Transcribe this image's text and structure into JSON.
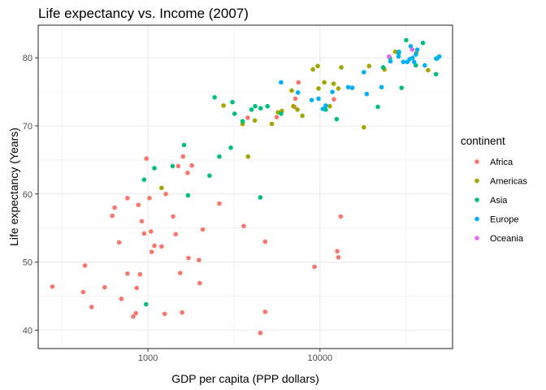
{
  "chart_data": {
    "type": "scatter",
    "title": "Life expectancy vs. Income (2007)",
    "xlabel": "GDP per capita (PPP dollars)",
    "ylabel": "Life expectancy (Years)",
    "x_scale": "log10",
    "xlim": [
      230,
      59000
    ],
    "ylim": [
      37.3,
      84.8
    ],
    "x_ticks": [
      1000,
      10000
    ],
    "x_tick_labels": [
      "1000",
      "10000"
    ],
    "y_ticks": [
      40,
      50,
      60,
      70,
      80
    ],
    "y_tick_labels": [
      "40",
      "50",
      "60",
      "70",
      "80"
    ],
    "grid": true,
    "legend_title": "continent",
    "legend_position": "right",
    "series": [
      {
        "name": "Africa",
        "color": "#F8766D",
        "points": [
          [
            278,
            46.4
          ],
          [
            420,
            45.6
          ],
          [
            430,
            49.5
          ],
          [
            470,
            43.4
          ],
          [
            560,
            46.3
          ],
          [
            620,
            56.8
          ],
          [
            640,
            58.0
          ],
          [
            680,
            52.9
          ],
          [
            700,
            44.6
          ],
          [
            760,
            48.3
          ],
          [
            760,
            59.4
          ],
          [
            820,
            42.0
          ],
          [
            850,
            42.5
          ],
          [
            860,
            46.2
          ],
          [
            880,
            58.4
          ],
          [
            900,
            48.2
          ],
          [
            920,
            56.0
          ],
          [
            950,
            54.2
          ],
          [
            980,
            65.2
          ],
          [
            1020,
            59.4
          ],
          [
            1040,
            54.5
          ],
          [
            1050,
            51.5
          ],
          [
            1090,
            52.4
          ],
          [
            1200,
            52.3
          ],
          [
            1250,
            42.4
          ],
          [
            1270,
            60.0
          ],
          [
            1400,
            56.7
          ],
          [
            1450,
            54.1
          ],
          [
            1500,
            64.1
          ],
          [
            1540,
            48.4
          ],
          [
            1580,
            42.6
          ],
          [
            1600,
            65.5
          ],
          [
            1700,
            63.1
          ],
          [
            1720,
            50.6
          ],
          [
            1800,
            64.2
          ],
          [
            1980,
            50.3
          ],
          [
            2000,
            46.9
          ],
          [
            2080,
            54.8
          ],
          [
            2600,
            58.6
          ],
          [
            3600,
            55.3
          ],
          [
            3800,
            71.2
          ],
          [
            4500,
            39.6
          ],
          [
            4800,
            42.7
          ],
          [
            4800,
            53.0
          ],
          [
            5600,
            71.3
          ],
          [
            7100,
            72.8
          ],
          [
            7200,
            74.0
          ],
          [
            7500,
            76.4
          ],
          [
            9300,
            49.3
          ],
          [
            12050,
            73.9
          ],
          [
            12600,
            51.6
          ],
          [
            12800,
            50.7
          ],
          [
            13200,
            56.7
          ]
        ]
      },
      {
        "name": "Americas",
        "color": "#A3A500",
        "points": [
          [
            1200,
            60.9
          ],
          [
            2750,
            73.0
          ],
          [
            3550,
            70.3
          ],
          [
            3820,
            65.5
          ],
          [
            4180,
            70.8
          ],
          [
            5250,
            70.3
          ],
          [
            5700,
            72.0
          ],
          [
            6000,
            72.2
          ],
          [
            6850,
            75.2
          ],
          [
            7000,
            72.9
          ],
          [
            7400,
            72.4
          ],
          [
            7900,
            71.5
          ],
          [
            9100,
            78.3
          ],
          [
            9700,
            78.8
          ],
          [
            9800,
            75.5
          ],
          [
            10600,
            76.4
          ],
          [
            11400,
            72.9
          ],
          [
            12000,
            76.2
          ],
          [
            12800,
            75.5
          ],
          [
            13300,
            78.6
          ],
          [
            18000,
            69.8
          ],
          [
            19300,
            78.8
          ],
          [
            23700,
            78.3
          ],
          [
            27400,
            80.9
          ],
          [
            36300,
            80.7
          ],
          [
            42500,
            78.2
          ]
        ]
      },
      {
        "name": "Asia",
        "color": "#00BF7D",
        "points": [
          [
            975,
            43.8
          ],
          [
            950,
            62.1
          ],
          [
            1090,
            63.8
          ],
          [
            1390,
            64.1
          ],
          [
            1620,
            67.2
          ],
          [
            1710,
            59.8
          ],
          [
            2280,
            62.7
          ],
          [
            2440,
            74.2
          ],
          [
            2600,
            65.5
          ],
          [
            3100,
            73.5
          ],
          [
            3030,
            66.8
          ],
          [
            3190,
            71.8
          ],
          [
            3550,
            70.7
          ],
          [
            4000,
            72.4
          ],
          [
            4200,
            72.9
          ],
          [
            4500,
            59.5
          ],
          [
            4520,
            72.6
          ],
          [
            4950,
            72.9
          ],
          [
            5940,
            71.8
          ],
          [
            10800,
            72.4
          ],
          [
            12500,
            71.0
          ],
          [
            21700,
            72.8
          ],
          [
            23300,
            78.6
          ],
          [
            25500,
            80.0
          ],
          [
            28700,
            80.7
          ],
          [
            29800,
            75.6
          ],
          [
            31700,
            82.6
          ],
          [
            36100,
            78.9
          ],
          [
            39700,
            82.2
          ],
          [
            47300,
            79.9
          ],
          [
            47300,
            77.6
          ]
        ]
      },
      {
        "name": "Europe",
        "color": "#00B0F6",
        "points": [
          [
            5940,
            76.4
          ],
          [
            7450,
            74.9
          ],
          [
            8950,
            73.8
          ],
          [
            9800,
            74.0
          ],
          [
            10400,
            72.5
          ],
          [
            10800,
            73.0
          ],
          [
            11800,
            75.0
          ],
          [
            14600,
            75.7
          ],
          [
            15400,
            75.6
          ],
          [
            18700,
            74.7
          ],
          [
            18000,
            77.9
          ],
          [
            22800,
            75.7
          ],
          [
            25700,
            79.5
          ],
          [
            28600,
            80.2
          ],
          [
            28800,
            80.9
          ],
          [
            30500,
            79.4
          ],
          [
            32200,
            79.4
          ],
          [
            33200,
            79.8
          ],
          [
            33700,
            81.7
          ],
          [
            34500,
            80.0
          ],
          [
            35300,
            79.4
          ],
          [
            36100,
            80.5
          ],
          [
            36800,
            81.2
          ],
          [
            40700,
            78.9
          ],
          [
            48000,
            79.9
          ],
          [
            49400,
            80.2
          ]
        ]
      },
      {
        "name": "Oceania",
        "color": "#E76BF3",
        "points": [
          [
            25200,
            80.2
          ],
          [
            34400,
            81.2
          ]
        ]
      }
    ]
  }
}
